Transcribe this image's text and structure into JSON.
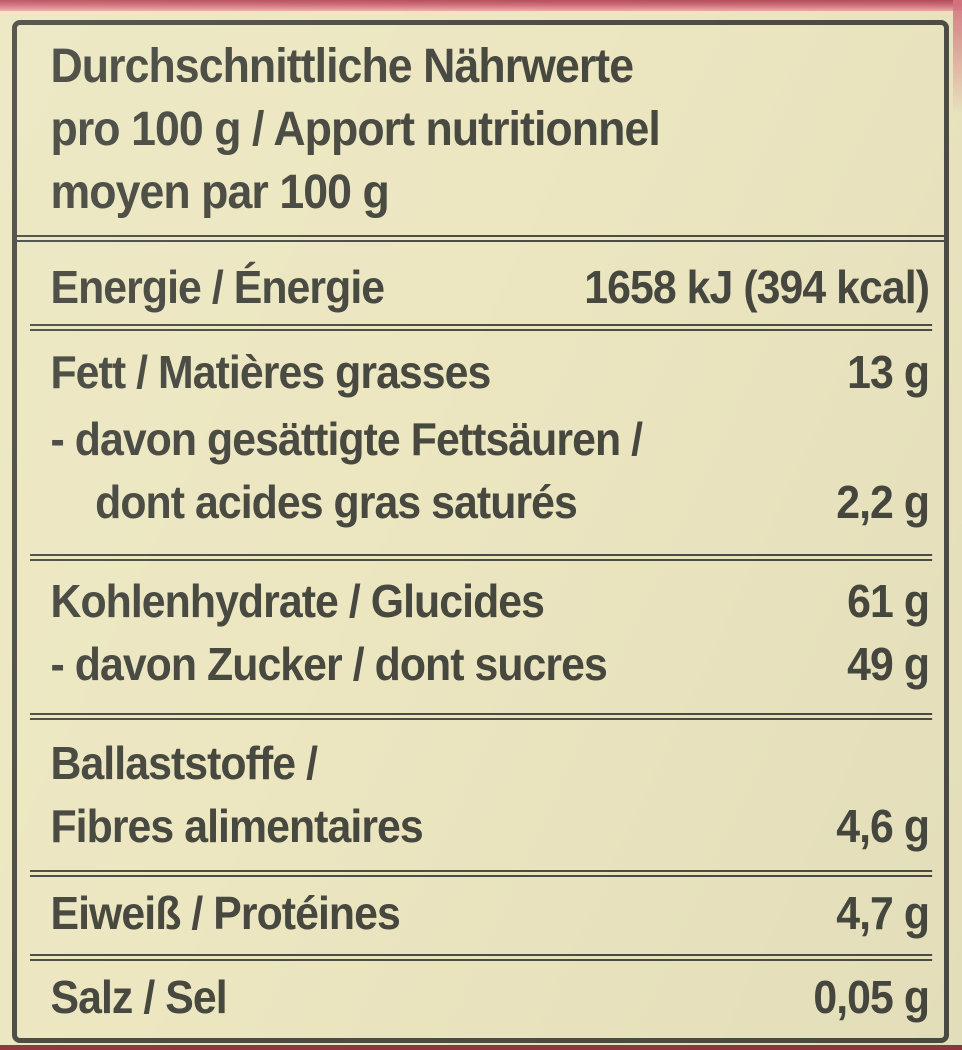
{
  "label": {
    "title_lines": [
      "Durchschnittliche Nährwerte",
      "pro 100 g / Apport nutritionnel",
      "moyen par 100 g"
    ],
    "rows": {
      "energy": {
        "label": "Energie / Énergie",
        "value": "1658 kJ (394 kcal)"
      },
      "fat": {
        "label": "Fett / Matières grasses",
        "value": "13 g"
      },
      "sat_fat": {
        "line1": "- davon gesättigte Fettsäuren /",
        "line2": "dont acides gras saturés",
        "value": "2,2 g"
      },
      "carbs": {
        "label": "Kohlenhydrate / Glucides",
        "value": "61 g"
      },
      "sugars": {
        "label": "- davon Zucker / dont sucres",
        "value": "49 g"
      },
      "fiber": {
        "line1": "Ballaststoffe /",
        "line2": "Fibres alimentaires",
        "value": "4,6 g"
      },
      "protein": {
        "label": "Eiweiß / Protéines",
        "value": "4,7 g"
      },
      "salt": {
        "label": "Salz / Sel",
        "value": "0,05 g"
      }
    }
  },
  "colors": {
    "bg_page": "#ece7c1",
    "text": "#47483f",
    "frame": "#4c4d44",
    "rule": "#4c4d44",
    "red_dark": "#b44e5b",
    "red_mid": "#cf6d77",
    "red_light": "#eeacab",
    "red_deep": "#8f383d"
  }
}
